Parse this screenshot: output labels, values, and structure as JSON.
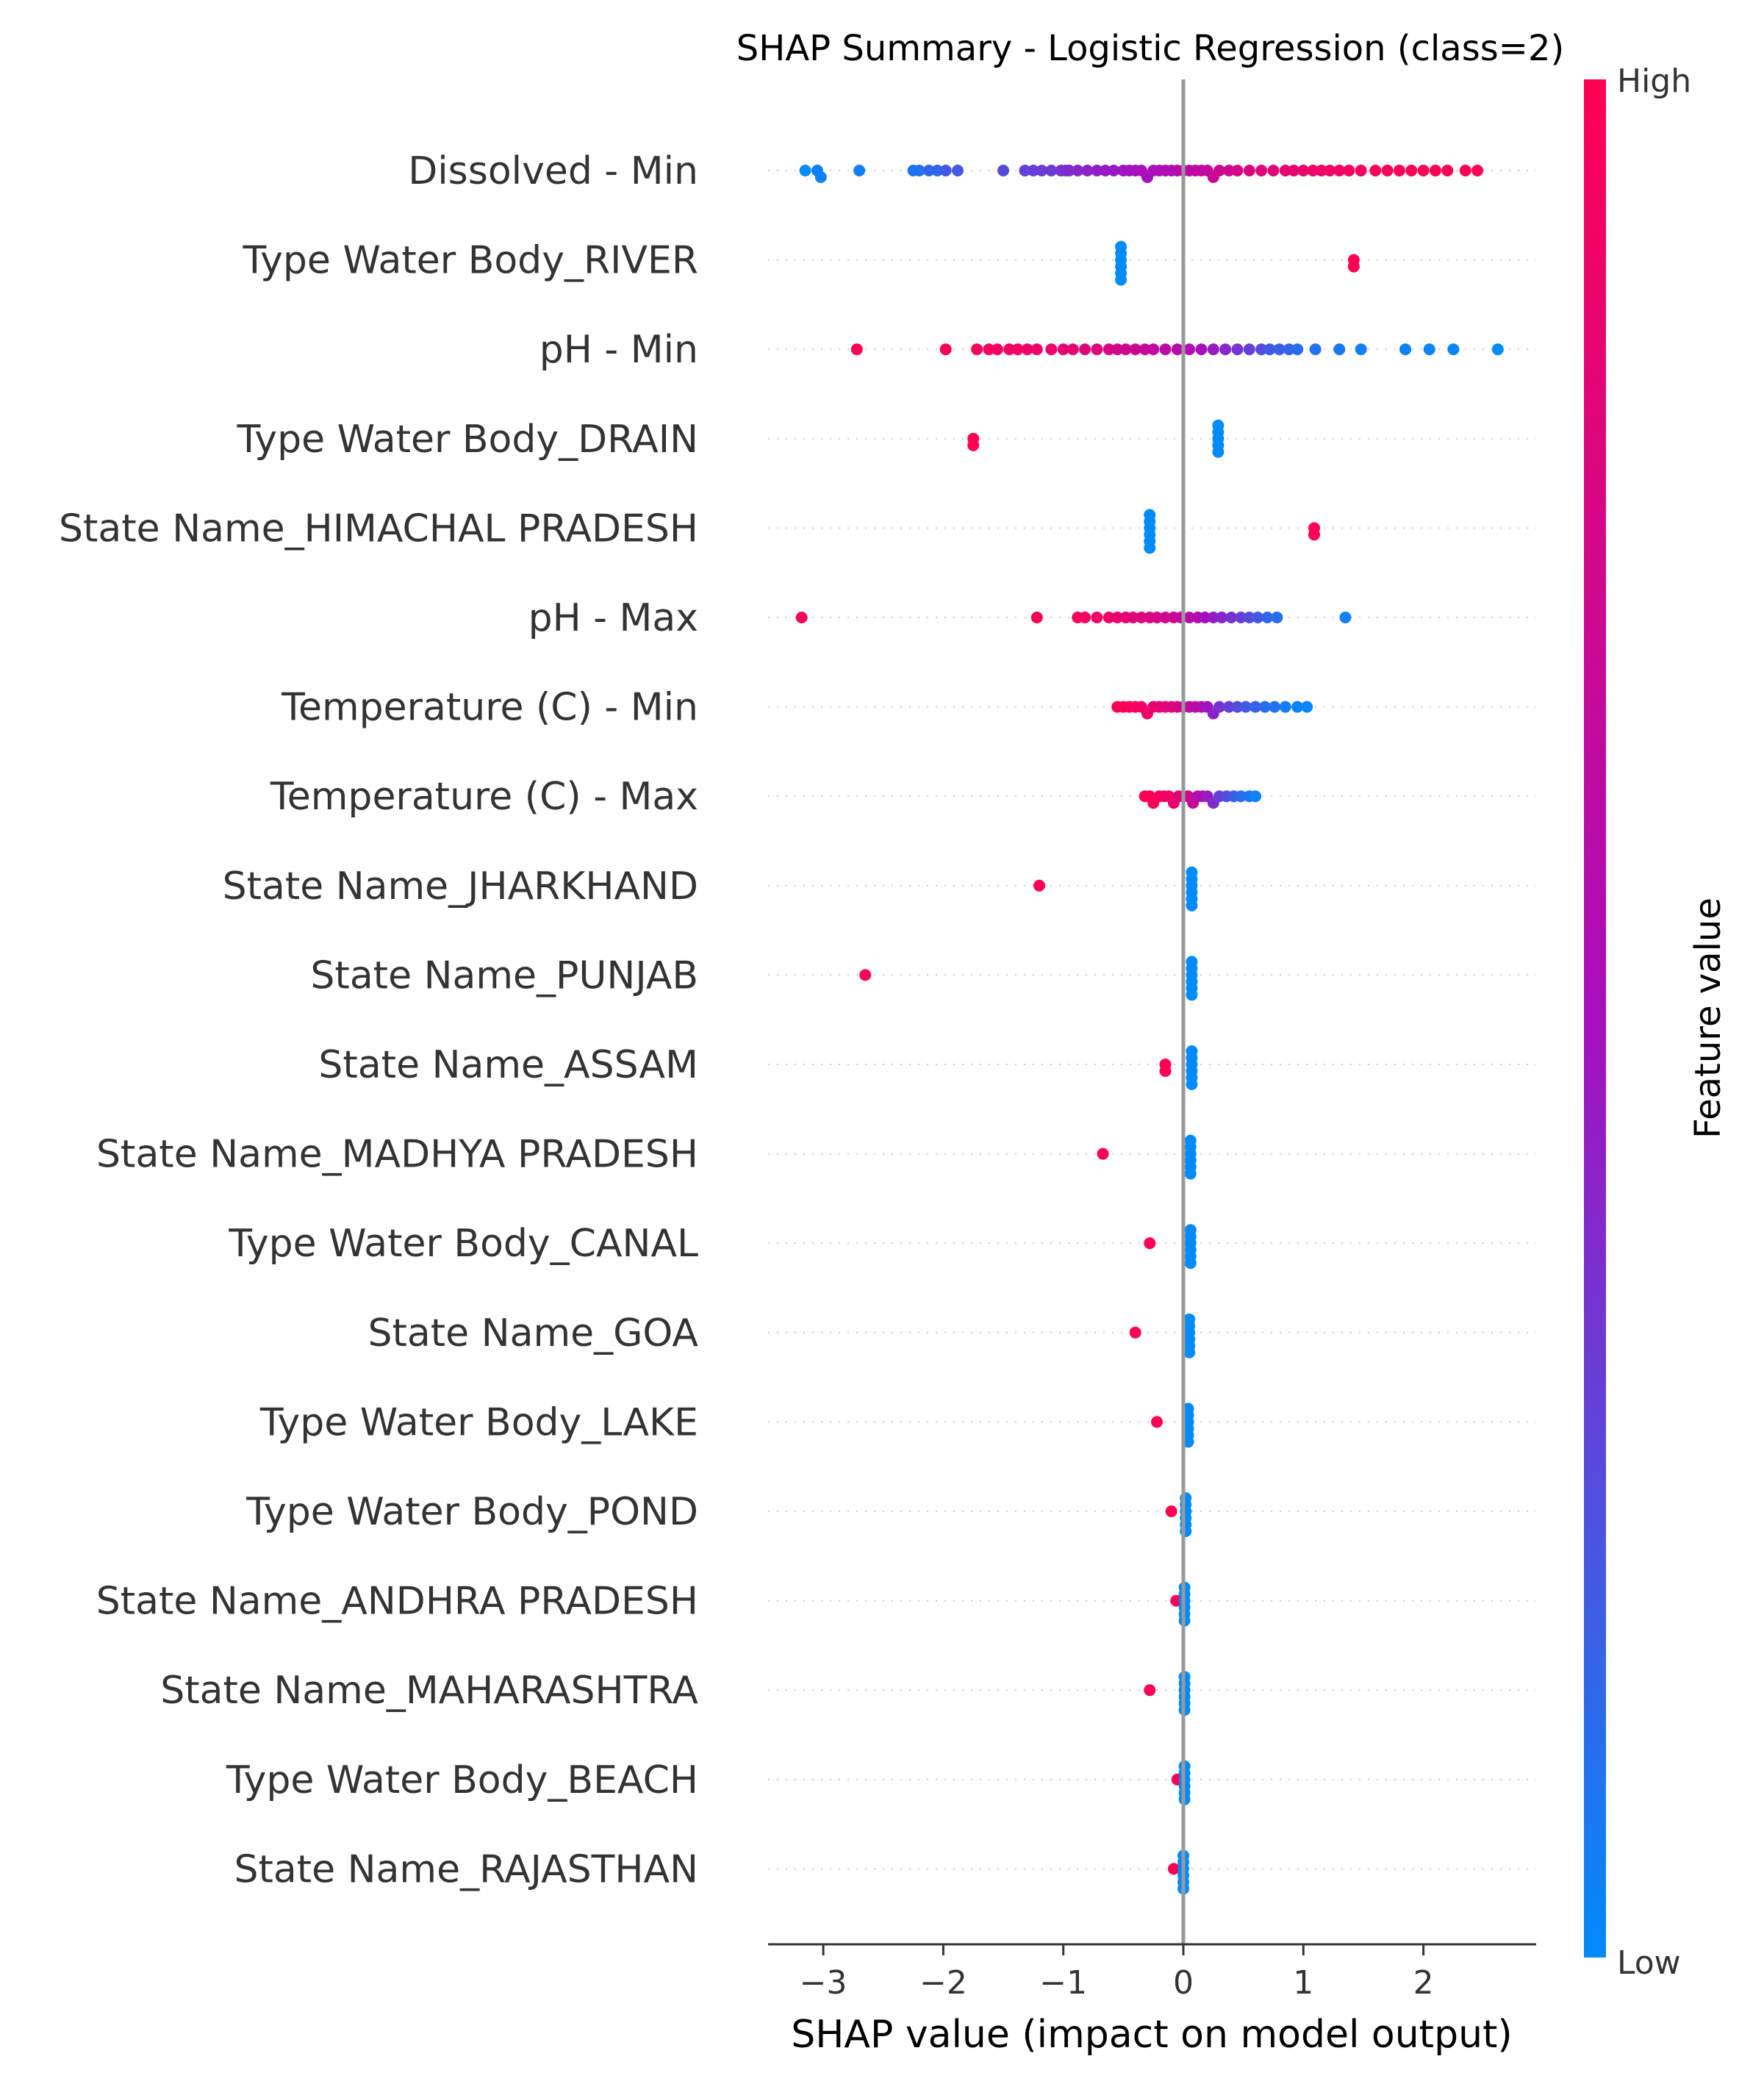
{
  "chart_data": {
    "type": "scatter",
    "title": "SHAP Summary - Logistic Regression (class=2)",
    "xlabel": "SHAP value (impact on model output)",
    "xlim": [
      -3.45,
      2.92
    ],
    "xticks": [
      -3,
      -2,
      -1,
      0,
      1,
      2
    ],
    "colorbar": {
      "label": "Feature value",
      "high_label": "High",
      "low_label": "Low",
      "high_color": "#ff0052",
      "low_color": "#008bfb"
    },
    "features": [
      {
        "name": "Dissolved - Min",
        "points": [
          [
            -3.15,
            0.0
          ],
          [
            -3.05,
            0.05
          ],
          [
            -3.02,
            0.05
          ],
          [
            -2.7,
            0.05
          ],
          [
            -2.25,
            0.1
          ],
          [
            -2.2,
            0.1
          ],
          [
            -2.12,
            0.15
          ],
          [
            -2.05,
            0.15
          ],
          [
            -1.98,
            0.2
          ],
          [
            -1.88,
            0.2
          ],
          [
            -1.5,
            0.25
          ],
          [
            -1.32,
            0.3
          ],
          [
            -1.25,
            0.3
          ],
          [
            -1.18,
            0.32
          ],
          [
            -1.1,
            0.33
          ],
          [
            -1.02,
            0.35
          ],
          [
            -0.98,
            0.36
          ],
          [
            -0.95,
            0.38
          ],
          [
            -0.88,
            0.4
          ],
          [
            -0.8,
            0.42
          ],
          [
            -0.72,
            0.43
          ],
          [
            -0.65,
            0.45
          ],
          [
            -0.58,
            0.45
          ],
          [
            -0.5,
            0.47
          ],
          [
            -0.45,
            0.48
          ],
          [
            -0.4,
            0.48
          ],
          [
            -0.35,
            0.5
          ],
          [
            -0.3,
            0.5
          ],
          [
            -0.25,
            0.52
          ],
          [
            -0.2,
            0.52
          ],
          [
            -0.15,
            0.55
          ],
          [
            -0.1,
            0.55
          ],
          [
            -0.05,
            0.58
          ],
          [
            0.0,
            0.6
          ],
          [
            0.05,
            0.62
          ],
          [
            0.1,
            0.62
          ],
          [
            0.15,
            0.65
          ],
          [
            0.2,
            0.65
          ],
          [
            0.25,
            0.68
          ],
          [
            0.3,
            0.7
          ],
          [
            0.38,
            0.72
          ],
          [
            0.45,
            0.75
          ],
          [
            0.55,
            0.78
          ],
          [
            0.65,
            0.8
          ],
          [
            0.75,
            0.82
          ],
          [
            0.85,
            0.85
          ],
          [
            0.92,
            0.87
          ],
          [
            1.0,
            0.88
          ],
          [
            1.08,
            0.9
          ],
          [
            1.15,
            0.9
          ],
          [
            1.22,
            0.92
          ],
          [
            1.3,
            0.93
          ],
          [
            1.38,
            0.95
          ],
          [
            1.48,
            0.95
          ],
          [
            1.6,
            0.96
          ],
          [
            1.7,
            0.97
          ],
          [
            1.8,
            0.97
          ],
          [
            1.9,
            0.98
          ],
          [
            2.0,
            0.98
          ],
          [
            2.1,
            0.99
          ],
          [
            2.2,
            0.99
          ],
          [
            2.35,
            1.0
          ],
          [
            2.45,
            1.0
          ]
        ]
      },
      {
        "name": "Type Water Body_RIVER",
        "points": [
          [
            -0.52,
            0.0
          ],
          [
            -0.52,
            0.0
          ],
          [
            -0.52,
            0.0
          ],
          [
            -0.52,
            0.0
          ],
          [
            -0.52,
            0.0
          ],
          [
            -0.52,
            0.0
          ],
          [
            1.42,
            1.0
          ],
          [
            1.42,
            1.0
          ]
        ]
      },
      {
        "name": "pH - Min",
        "points": [
          [
            -2.72,
            1.0
          ],
          [
            -1.98,
            0.98
          ],
          [
            -1.72,
            0.96
          ],
          [
            -1.62,
            0.95
          ],
          [
            -1.55,
            0.94
          ],
          [
            -1.45,
            0.93
          ],
          [
            -1.38,
            0.92
          ],
          [
            -1.3,
            0.9
          ],
          [
            -1.22,
            0.9
          ],
          [
            -1.1,
            0.88
          ],
          [
            -1.0,
            0.86
          ],
          [
            -0.92,
            0.85
          ],
          [
            -0.82,
            0.82
          ],
          [
            -0.72,
            0.8
          ],
          [
            -0.62,
            0.78
          ],
          [
            -0.55,
            0.75
          ],
          [
            -0.48,
            0.72
          ],
          [
            -0.4,
            0.7
          ],
          [
            -0.32,
            0.68
          ],
          [
            -0.25,
            0.65
          ],
          [
            -0.15,
            0.62
          ],
          [
            -0.05,
            0.6
          ],
          [
            0.05,
            0.55
          ],
          [
            0.15,
            0.5
          ],
          [
            0.25,
            0.45
          ],
          [
            0.35,
            0.4
          ],
          [
            0.45,
            0.35
          ],
          [
            0.55,
            0.3
          ],
          [
            0.65,
            0.25
          ],
          [
            0.72,
            0.2
          ],
          [
            0.8,
            0.18
          ],
          [
            0.88,
            0.15
          ],
          [
            0.95,
            0.12
          ],
          [
            1.1,
            0.1
          ],
          [
            1.3,
            0.08
          ],
          [
            1.48,
            0.05
          ],
          [
            1.85,
            0.04
          ],
          [
            2.05,
            0.03
          ],
          [
            2.25,
            0.02
          ],
          [
            2.62,
            0.0
          ]
        ]
      },
      {
        "name": "Type Water Body_DRAIN",
        "points": [
          [
            -1.75,
            1.0
          ],
          [
            -1.75,
            1.0
          ],
          [
            0.29,
            0.0
          ],
          [
            0.29,
            0.0
          ],
          [
            0.29,
            0.0
          ],
          [
            0.29,
            0.0
          ],
          [
            0.29,
            0.0
          ]
        ]
      },
      {
        "name": "State Name_HIMACHAL PRADESH",
        "points": [
          [
            -0.28,
            0.0
          ],
          [
            -0.28,
            0.0
          ],
          [
            -0.28,
            0.0
          ],
          [
            -0.28,
            0.0
          ],
          [
            -0.28,
            0.0
          ],
          [
            -0.28,
            0.0
          ],
          [
            1.09,
            1.0
          ],
          [
            1.09,
            1.0
          ]
        ]
      },
      {
        "name": "pH - Max",
        "points": [
          [
            -3.18,
            1.0
          ],
          [
            -1.22,
            0.98
          ],
          [
            -0.88,
            0.96
          ],
          [
            -0.82,
            0.95
          ],
          [
            -0.72,
            0.93
          ],
          [
            -0.62,
            0.9
          ],
          [
            -0.55,
            0.88
          ],
          [
            -0.48,
            0.85
          ],
          [
            -0.42,
            0.82
          ],
          [
            -0.35,
            0.8
          ],
          [
            -0.28,
            0.78
          ],
          [
            -0.22,
            0.75
          ],
          [
            -0.15,
            0.72
          ],
          [
            -0.08,
            0.7
          ],
          [
            -0.02,
            0.65
          ],
          [
            0.05,
            0.6
          ],
          [
            0.12,
            0.55
          ],
          [
            0.18,
            0.5
          ],
          [
            0.25,
            0.45
          ],
          [
            0.32,
            0.4
          ],
          [
            0.4,
            0.35
          ],
          [
            0.48,
            0.3
          ],
          [
            0.55,
            0.25
          ],
          [
            0.62,
            0.2
          ],
          [
            0.7,
            0.15
          ],
          [
            0.78,
            0.12
          ],
          [
            1.35,
            0.05
          ]
        ]
      },
      {
        "name": "Temperature (C) - Min",
        "points": [
          [
            -0.55,
            1.0
          ],
          [
            -0.5,
            0.98
          ],
          [
            -0.45,
            0.96
          ],
          [
            -0.4,
            0.95
          ],
          [
            -0.35,
            0.92
          ],
          [
            -0.3,
            0.9
          ],
          [
            -0.25,
            0.88
          ],
          [
            -0.2,
            0.86
          ],
          [
            -0.15,
            0.84
          ],
          [
            -0.1,
            0.8
          ],
          [
            -0.05,
            0.78
          ],
          [
            0.0,
            0.72
          ],
          [
            0.05,
            0.65
          ],
          [
            0.1,
            0.6
          ],
          [
            0.15,
            0.55
          ],
          [
            0.2,
            0.48
          ],
          [
            0.25,
            0.42
          ],
          [
            0.3,
            0.36
          ],
          [
            0.38,
            0.3
          ],
          [
            0.45,
            0.25
          ],
          [
            0.52,
            0.2
          ],
          [
            0.6,
            0.16
          ],
          [
            0.68,
            0.12
          ],
          [
            0.76,
            0.1
          ],
          [
            0.85,
            0.06
          ],
          [
            0.95,
            0.04
          ],
          [
            1.03,
            0.02
          ]
        ]
      },
      {
        "name": "Temperature (C) - Max",
        "points": [
          [
            -0.32,
            1.0
          ],
          [
            -0.28,
            0.98
          ],
          [
            -0.25,
            0.96
          ],
          [
            -0.2,
            0.95
          ],
          [
            -0.16,
            0.93
          ],
          [
            -0.12,
            0.9
          ],
          [
            -0.08,
            0.88
          ],
          [
            -0.04,
            0.84
          ],
          [
            0.0,
            0.8
          ],
          [
            0.04,
            0.74
          ],
          [
            0.08,
            0.68
          ],
          [
            0.12,
            0.6
          ],
          [
            0.16,
            0.52
          ],
          [
            0.2,
            0.45
          ],
          [
            0.25,
            0.38
          ],
          [
            0.3,
            0.3
          ],
          [
            0.36,
            0.24
          ],
          [
            0.42,
            0.18
          ],
          [
            0.48,
            0.12
          ],
          [
            0.55,
            0.08
          ],
          [
            0.6,
            0.04
          ]
        ]
      },
      {
        "name": "State Name_JHARKHAND",
        "points": [
          [
            -1.2,
            1.0
          ],
          [
            0.07,
            0.0
          ],
          [
            0.07,
            0.0
          ],
          [
            0.07,
            0.0
          ],
          [
            0.07,
            0.0
          ],
          [
            0.07,
            0.0
          ],
          [
            0.07,
            0.0
          ]
        ]
      },
      {
        "name": "State Name_PUNJAB",
        "points": [
          [
            -2.65,
            1.0
          ],
          [
            0.07,
            0.0
          ],
          [
            0.07,
            0.0
          ],
          [
            0.07,
            0.0
          ],
          [
            0.07,
            0.0
          ],
          [
            0.07,
            0.0
          ],
          [
            0.07,
            0.0
          ]
        ]
      },
      {
        "name": "State Name_ASSAM",
        "points": [
          [
            -0.15,
            1.0
          ],
          [
            -0.15,
            1.0
          ],
          [
            0.07,
            0.0
          ],
          [
            0.07,
            0.0
          ],
          [
            0.07,
            0.0
          ],
          [
            0.07,
            0.0
          ],
          [
            0.07,
            0.0
          ],
          [
            0.07,
            0.0
          ]
        ]
      },
      {
        "name": "State Name_MADHYA PRADESH",
        "points": [
          [
            -0.67,
            1.0
          ],
          [
            0.06,
            0.0
          ],
          [
            0.06,
            0.0
          ],
          [
            0.06,
            0.0
          ],
          [
            0.06,
            0.0
          ],
          [
            0.06,
            0.0
          ],
          [
            0.06,
            0.0
          ]
        ]
      },
      {
        "name": "Type Water Body_CANAL",
        "points": [
          [
            -0.28,
            1.0
          ],
          [
            0.06,
            0.0
          ],
          [
            0.06,
            0.0
          ],
          [
            0.06,
            0.0
          ],
          [
            0.06,
            0.0
          ],
          [
            0.06,
            0.0
          ],
          [
            0.06,
            0.0
          ]
        ]
      },
      {
        "name": "State Name_GOA",
        "points": [
          [
            -0.4,
            1.0
          ],
          [
            0.05,
            0.0
          ],
          [
            0.05,
            0.0
          ],
          [
            0.05,
            0.0
          ],
          [
            0.05,
            0.0
          ],
          [
            0.05,
            0.0
          ],
          [
            0.05,
            0.0
          ]
        ]
      },
      {
        "name": "Type Water Body_LAKE",
        "points": [
          [
            -0.22,
            1.0
          ],
          [
            0.04,
            0.0
          ],
          [
            0.04,
            0.0
          ],
          [
            0.04,
            0.0
          ],
          [
            0.04,
            0.0
          ],
          [
            0.04,
            0.0
          ],
          [
            0.04,
            0.0
          ]
        ]
      },
      {
        "name": "Type Water Body_POND",
        "points": [
          [
            -0.1,
            1.0
          ],
          [
            0.02,
            0.0
          ],
          [
            0.02,
            0.0
          ],
          [
            0.02,
            0.0
          ],
          [
            0.02,
            0.0
          ],
          [
            0.02,
            0.0
          ],
          [
            0.02,
            0.0
          ]
        ]
      },
      {
        "name": "State Name_ANDHRA PRADESH",
        "points": [
          [
            -0.06,
            1.0
          ],
          [
            0.01,
            0.0
          ],
          [
            0.01,
            0.0
          ],
          [
            0.01,
            0.0
          ],
          [
            0.01,
            0.0
          ],
          [
            0.01,
            0.0
          ],
          [
            0.01,
            0.0
          ]
        ]
      },
      {
        "name": "State Name_MAHARASHTRA",
        "points": [
          [
            -0.28,
            1.0
          ],
          [
            0.01,
            0.0
          ],
          [
            0.01,
            0.0
          ],
          [
            0.01,
            0.0
          ],
          [
            0.01,
            0.0
          ],
          [
            0.01,
            0.0
          ],
          [
            0.01,
            0.0
          ]
        ]
      },
      {
        "name": "Type Water Body_BEACH",
        "points": [
          [
            -0.05,
            1.0
          ],
          [
            0.01,
            0.0
          ],
          [
            0.01,
            0.0
          ],
          [
            0.01,
            0.0
          ],
          [
            0.01,
            0.0
          ],
          [
            0.01,
            0.0
          ],
          [
            0.01,
            0.0
          ]
        ]
      },
      {
        "name": "State Name_RAJASTHAN",
        "points": [
          [
            -0.08,
            1.0
          ],
          [
            0.0,
            0.0
          ],
          [
            0.0,
            0.0
          ],
          [
            0.0,
            0.0
          ],
          [
            0.0,
            0.0
          ],
          [
            0.0,
            0.0
          ],
          [
            0.0,
            0.0
          ]
        ]
      }
    ]
  }
}
